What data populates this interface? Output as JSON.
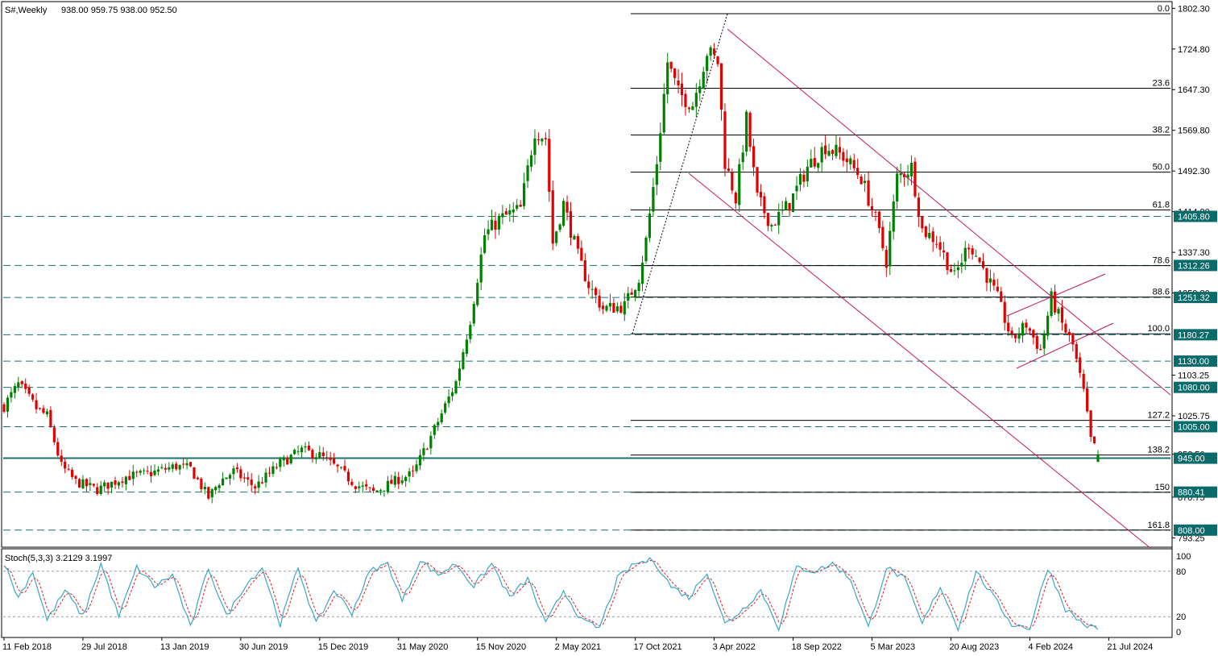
{
  "header": {
    "symbol_tf": "S#,Weekly",
    "ohlc": "938.00 959.75 938.00 952.50"
  },
  "stoch": {
    "title": "Stoch(5,3,3) 3.2129 3.1997",
    "scale": [
      "100",
      "80",
      "20",
      "0"
    ]
  },
  "colors": {
    "up": "#008000",
    "down": "#e00000",
    "hline": "#1f6f6f",
    "tag_bg": "#0b6b6b",
    "channel": "#c2185b",
    "stoch_main": "#3aa6c8",
    "stoch_signal": "#e02020"
  },
  "chart_data": [
    {
      "type": "candlestick",
      "price_range": [
        780,
        1812
      ],
      "y_ticks": [
        "1802.30",
        "1724.80",
        "1647.30",
        "1569.80",
        "1492.30",
        "1414.80",
        "1337.30",
        "1259.80",
        "1103.25",
        "1025.75",
        "952.50",
        "870.75",
        "793.25"
      ],
      "x_ticks": [
        "11 Feb 2018",
        "29 Jul 2018",
        "13 Jan 2019",
        "30 Jun 2019",
        "15 Dec 2019",
        "31 May 2020",
        "15 Nov 2020",
        "2 May 2021",
        "17 Oct 2021",
        "3 Apr 2022",
        "18 Sep 2022",
        "5 Mar 2023",
        "20 Aug 2023",
        "4 Feb 2024",
        "21 Jul 2024"
      ],
      "price_tags": [
        {
          "label": "1405.80",
          "value": 1405.8
        },
        {
          "label": "1312.26",
          "value": 1312.26
        },
        {
          "label": "1251.32",
          "value": 1251.32
        },
        {
          "label": "1180.27",
          "value": 1180.27
        },
        {
          "label": "1130.00",
          "value": 1130
        },
        {
          "label": "1080.00",
          "value": 1080
        },
        {
          "label": "1005.00",
          "value": 1005
        },
        {
          "label": "945.00",
          "value": 945
        },
        {
          "label": "880.41",
          "value": 880.41
        },
        {
          "label": "808.00",
          "value": 808
        }
      ],
      "fib_levels": [
        {
          "label": "0.0",
          "value": 1792
        },
        {
          "label": "23.6",
          "value": 1650
        },
        {
          "label": "38.2",
          "value": 1561
        },
        {
          "label": "50.0",
          "value": 1490
        },
        {
          "label": "61.8",
          "value": 1418
        },
        {
          "label": "78.6",
          "value": 1312
        },
        {
          "label": "88.6",
          "value": 1252
        },
        {
          "label": "100.0",
          "value": 1182
        },
        {
          "label": "127.2",
          "value": 1017
        },
        {
          "label": "138.2",
          "value": 951
        },
        {
          "label": "150",
          "value": 880
        },
        {
          "label": "161.8",
          "value": 808
        }
      ],
      "anchors": [
        {
          "t": 0,
          "p": 1045
        },
        {
          "t": 4,
          "p": 1085
        },
        {
          "t": 9,
          "p": 1040
        },
        {
          "t": 12,
          "p": 1025
        },
        {
          "t": 16,
          "p": 930
        },
        {
          "t": 20,
          "p": 900
        },
        {
          "t": 26,
          "p": 885
        },
        {
          "t": 34,
          "p": 910
        },
        {
          "t": 40,
          "p": 915
        },
        {
          "t": 48,
          "p": 930
        },
        {
          "t": 52,
          "p": 925
        },
        {
          "t": 57,
          "p": 870
        },
        {
          "t": 60,
          "p": 900
        },
        {
          "t": 64,
          "p": 920
        },
        {
          "t": 70,
          "p": 890
        },
        {
          "t": 77,
          "p": 935
        },
        {
          "t": 83,
          "p": 960
        },
        {
          "t": 88,
          "p": 950
        },
        {
          "t": 93,
          "p": 925
        },
        {
          "t": 98,
          "p": 895
        },
        {
          "t": 103,
          "p": 880
        },
        {
          "t": 110,
          "p": 905
        },
        {
          "t": 114,
          "p": 915
        },
        {
          "t": 120,
          "p": 1000
        },
        {
          "t": 126,
          "p": 1090
        },
        {
          "t": 130,
          "p": 1210
        },
        {
          "t": 134,
          "p": 1370
        },
        {
          "t": 138,
          "p": 1400
        },
        {
          "t": 144,
          "p": 1420
        },
        {
          "t": 148,
          "p": 1570
        },
        {
          "t": 151,
          "p": 1555
        },
        {
          "t": 153,
          "p": 1355
        },
        {
          "t": 156,
          "p": 1430
        },
        {
          "t": 160,
          "p": 1330
        },
        {
          "t": 163,
          "p": 1275
        },
        {
          "t": 167,
          "p": 1230
        },
        {
          "t": 173,
          "p": 1235
        },
        {
          "t": 177,
          "p": 1290
        },
        {
          "t": 179,
          "p": 1360
        },
        {
          "t": 182,
          "p": 1510
        },
        {
          "t": 185,
          "p": 1700
        },
        {
          "t": 188,
          "p": 1640
        },
        {
          "t": 192,
          "p": 1620
        },
        {
          "t": 196,
          "p": 1720
        },
        {
          "t": 199,
          "p": 1700
        },
        {
          "t": 201,
          "p": 1510
        },
        {
          "t": 204,
          "p": 1440
        },
        {
          "t": 207,
          "p": 1590
        },
        {
          "t": 210,
          "p": 1440
        },
        {
          "t": 214,
          "p": 1390
        },
        {
          "t": 219,
          "p": 1430
        },
        {
          "t": 224,
          "p": 1500
        },
        {
          "t": 229,
          "p": 1540
        },
        {
          "t": 234,
          "p": 1520
        },
        {
          "t": 239,
          "p": 1480
        },
        {
          "t": 243,
          "p": 1400
        },
        {
          "t": 246,
          "p": 1320
        },
        {
          "t": 249,
          "p": 1480
        },
        {
          "t": 253,
          "p": 1500
        },
        {
          "t": 256,
          "p": 1380
        },
        {
          "t": 260,
          "p": 1360
        },
        {
          "t": 265,
          "p": 1290
        },
        {
          "t": 269,
          "p": 1355
        },
        {
          "t": 272,
          "p": 1320
        },
        {
          "t": 277,
          "p": 1250
        },
        {
          "t": 281,
          "p": 1170
        },
        {
          "t": 285,
          "p": 1200
        },
        {
          "t": 289,
          "p": 1150
        },
        {
          "t": 292,
          "p": 1250
        },
        {
          "t": 295,
          "p": 1200
        },
        {
          "t": 298,
          "p": 1160
        },
        {
          "t": 301,
          "p": 1070
        },
        {
          "t": 303,
          "p": 980
        },
        {
          "t": 305,
          "p": 952.5
        }
      ],
      "stoch_anchors": [
        {
          "t": 0,
          "v": 90
        },
        {
          "t": 4,
          "v": 45
        },
        {
          "t": 8,
          "v": 80
        },
        {
          "t": 12,
          "v": 15
        },
        {
          "t": 17,
          "v": 55
        },
        {
          "t": 22,
          "v": 20
        },
        {
          "t": 27,
          "v": 90
        },
        {
          "t": 32,
          "v": 20
        },
        {
          "t": 37,
          "v": 85
        },
        {
          "t": 42,
          "v": 60
        },
        {
          "t": 47,
          "v": 75
        },
        {
          "t": 52,
          "v": 5
        },
        {
          "t": 57,
          "v": 85
        },
        {
          "t": 62,
          "v": 20
        },
        {
          "t": 67,
          "v": 60
        },
        {
          "t": 72,
          "v": 85
        },
        {
          "t": 77,
          "v": 10
        },
        {
          "t": 82,
          "v": 85
        },
        {
          "t": 87,
          "v": 10
        },
        {
          "t": 92,
          "v": 55
        },
        {
          "t": 97,
          "v": 25
        },
        {
          "t": 102,
          "v": 80
        },
        {
          "t": 107,
          "v": 90
        },
        {
          "t": 111,
          "v": 40
        },
        {
          "t": 116,
          "v": 95
        },
        {
          "t": 121,
          "v": 75
        },
        {
          "t": 126,
          "v": 90
        },
        {
          "t": 131,
          "v": 60
        },
        {
          "t": 136,
          "v": 90
        },
        {
          "t": 141,
          "v": 45
        },
        {
          "t": 146,
          "v": 70
        },
        {
          "t": 151,
          "v": 10
        },
        {
          "t": 156,
          "v": 55
        },
        {
          "t": 161,
          "v": 15
        },
        {
          "t": 166,
          "v": 5
        },
        {
          "t": 171,
          "v": 70
        },
        {
          "t": 176,
          "v": 90
        },
        {
          "t": 181,
          "v": 95
        },
        {
          "t": 186,
          "v": 60
        },
        {
          "t": 191,
          "v": 45
        },
        {
          "t": 196,
          "v": 80
        },
        {
          "t": 201,
          "v": 10
        },
        {
          "t": 206,
          "v": 30
        },
        {
          "t": 211,
          "v": 55
        },
        {
          "t": 216,
          "v": 5
        },
        {
          "t": 221,
          "v": 85
        },
        {
          "t": 226,
          "v": 80
        },
        {
          "t": 231,
          "v": 90
        },
        {
          "t": 236,
          "v": 70
        },
        {
          "t": 241,
          "v": 5
        },
        {
          "t": 246,
          "v": 85
        },
        {
          "t": 251,
          "v": 70
        },
        {
          "t": 256,
          "v": 10
        },
        {
          "t": 261,
          "v": 60
        },
        {
          "t": 266,
          "v": 5
        },
        {
          "t": 271,
          "v": 80
        },
        {
          "t": 276,
          "v": 45
        },
        {
          "t": 281,
          "v": 10
        },
        {
          "t": 286,
          "v": 5
        },
        {
          "t": 291,
          "v": 85
        },
        {
          "t": 296,
          "v": 30
        },
        {
          "t": 301,
          "v": 10
        },
        {
          "t": 305,
          "v": 3.2
        }
      ]
    }
  ]
}
